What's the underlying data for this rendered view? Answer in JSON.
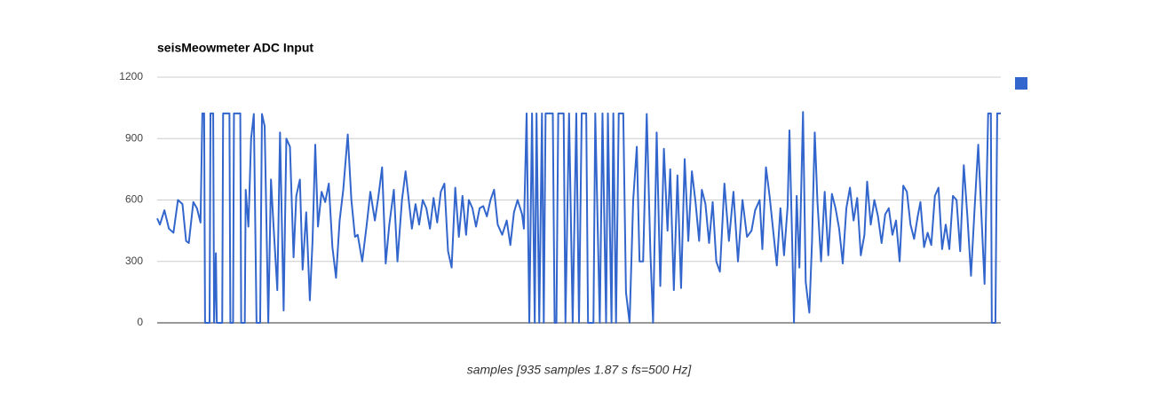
{
  "chart_data": {
    "type": "line",
    "title": "seisMeowmeter ADC Input",
    "xlabel": "samples [935 samples 1.87 s fs=500 Hz]",
    "x": [
      0,
      3,
      8,
      13,
      18,
      23,
      28,
      32,
      35,
      40,
      44,
      48,
      50,
      52,
      53,
      58,
      59,
      62,
      63,
      65,
      66,
      72,
      73,
      80,
      81,
      84,
      85,
      92,
      93,
      97,
      98,
      101,
      104,
      107,
      110,
      114,
      116,
      119,
      123,
      126,
      129,
      133,
      136,
      140,
      143,
      147,
      151,
      154,
      158,
      161,
      165,
      169,
      172,
      175,
      178,
      182,
      186,
      190,
      194,
      198,
      202,
      206,
      211,
      215,
      219,
      222,
      227,
      232,
      236,
      241,
      245,
      249,
      253,
      257,
      262,
      266,
      271,
      275,
      279,
      282,
      286,
      290,
      294,
      298,
      302,
      306,
      310,
      314,
      318,
      322,
      326,
      330,
      334,
      338,
      342,
      345,
      349,
      353,
      357,
      361,
      365,
      369,
      373,
      377,
      382,
      387,
      391,
      395,
      399,
      404,
      406,
      409,
      412,
      415,
      418,
      420,
      423,
      426,
      428,
      430,
      438,
      440,
      442,
      444,
      450,
      452,
      456,
      460,
      464,
      467,
      470,
      475,
      477,
      483,
      485,
      490,
      493,
      497,
      499,
      503,
      505,
      508,
      511,
      516,
      519,
      523,
      527,
      531,
      534,
      538,
      542,
      546,
      549,
      553,
      557,
      561,
      565,
      568,
      572,
      576,
      580,
      584,
      588,
      592,
      596,
      600,
      603,
      607,
      611,
      615,
      619,
      623,
      628,
      633,
      638,
      643,
      648,
      653,
      658,
      662,
      667,
      670,
      674,
      678,
      682,
      686,
      690,
      694,
      698,
      700,
      703,
      705,
      708,
      711,
      715,
      718,
      722,
      725,
      728,
      731,
      735,
      739,
      743,
      747,
      751,
      755,
      759,
      763,
      767,
      771,
      775,
      779,
      783,
      786,
      790,
      794,
      798,
      802,
      806,
      810,
      814,
      818,
      822,
      826,
      830,
      834,
      838,
      842,
      845,
      849,
      853,
      857,
      861,
      865,
      869,
      873,
      877,
      881,
      885,
      889,
      893,
      897,
      901,
      905,
      909,
      913,
      916,
      920,
      923,
      924,
      928,
      930,
      934
    ],
    "series": [
      {
        "color": "#3366cc",
        "values": [
          510,
          480,
          550,
          460,
          440,
          600,
          580,
          400,
          390,
          590,
          560,
          490,
          1023,
          1023,
          0,
          0,
          1023,
          1023,
          0,
          340,
          0,
          0,
          1023,
          1023,
          0,
          0,
          1023,
          1023,
          0,
          0,
          650,
          470,
          900,
          1020,
          0,
          0,
          1020,
          960,
          0,
          700,
          460,
          160,
          930,
          60,
          900,
          860,
          320,
          620,
          700,
          260,
          540,
          110,
          400,
          870,
          470,
          640,
          590,
          680,
          370,
          220,
          500,
          650,
          920,
          600,
          420,
          430,
          300,
          480,
          640,
          500,
          620,
          760,
          290,
          480,
          650,
          300,
          600,
          740,
          580,
          460,
          580,
          480,
          600,
          560,
          460,
          610,
          490,
          640,
          680,
          350,
          270,
          660,
          420,
          620,
          430,
          600,
          560,
          470,
          560,
          570,
          520,
          600,
          650,
          480,
          430,
          500,
          380,
          540,
          600,
          530,
          460,
          1023,
          0,
          1023,
          0,
          1023,
          0,
          1023,
          0,
          1023,
          1023,
          0,
          0,
          1023,
          1023,
          0,
          1023,
          0,
          1023,
          0,
          1023,
          1023,
          0,
          0,
          1023,
          0,
          1023,
          0,
          1023,
          0,
          1023,
          0,
          1023,
          1023,
          150,
          0,
          600,
          860,
          300,
          300,
          1020,
          350,
          0,
          930,
          180,
          850,
          450,
          750,
          160,
          720,
          170,
          800,
          400,
          740,
          590,
          400,
          650,
          580,
          390,
          590,
          300,
          250,
          680,
          400,
          640,
          300,
          600,
          420,
          450,
          550,
          600,
          360,
          760,
          620,
          450,
          280,
          560,
          330,
          570,
          940,
          400,
          0,
          620,
          270,
          1030,
          200,
          50,
          400,
          930,
          590,
          300,
          640,
          330,
          630,
          560,
          460,
          290,
          560,
          660,
          500,
          610,
          330,
          430,
          690,
          480,
          600,
          520,
          390,
          530,
          560,
          430,
          500,
          300,
          670,
          640,
          480,
          410,
          520,
          590,
          370,
          440,
          380,
          620,
          660,
          360,
          480,
          360,
          620,
          600,
          350,
          770,
          520,
          230,
          560,
          870,
          480,
          190,
          1023,
          1023,
          0,
          0,
          1023,
          1023
        ]
      }
    ],
    "xlim": [
      0,
      934
    ],
    "ylim": [
      0,
      1200
    ],
    "yticks": [
      0,
      300,
      600,
      900,
      1200
    ],
    "grid": true
  }
}
